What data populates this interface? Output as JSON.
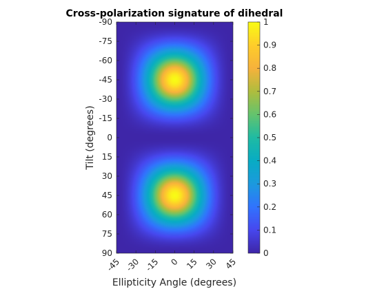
{
  "chart_data": {
    "type": "heatmap",
    "title": "Cross-polarization signature of dihedral",
    "xlabel": "Ellipticity Angle (degrees)",
    "ylabel": "Tilt (degrees)",
    "x_range": [
      -45,
      45
    ],
    "y_range": [
      -90,
      90
    ],
    "y_direction": "reversed",
    "x_ticks": [
      "-45",
      "-30",
      "-15",
      "0",
      "15",
      "30",
      "45"
    ],
    "x_tick_values": [
      -45,
      -30,
      -15,
      0,
      15,
      30,
      45
    ],
    "y_ticks": [
      "-90",
      "-75",
      "-60",
      "-45",
      "-30",
      "-15",
      "0",
      "15",
      "30",
      "45",
      "60",
      "75",
      "90"
    ],
    "y_tick_values": [
      -90,
      -75,
      -60,
      -45,
      -30,
      -15,
      0,
      15,
      30,
      45,
      60,
      75,
      90
    ],
    "colorbar": {
      "range": [
        0,
        1
      ],
      "ticks": [
        "0",
        "0.1",
        "0.2",
        "0.3",
        "0.4",
        "0.5",
        "0.6",
        "0.7",
        "0.8",
        "0.9",
        "1"
      ],
      "tick_values": [
        0,
        0.1,
        0.2,
        0.3,
        0.4,
        0.5,
        0.6,
        0.7,
        0.8,
        0.9,
        1
      ],
      "colormap": "parula"
    },
    "peaks": [
      {
        "ellipticity": 0,
        "tilt": -45,
        "value": 1
      },
      {
        "ellipticity": 0,
        "tilt": 45,
        "value": 1
      }
    ],
    "minima": [
      {
        "tilt": -90,
        "value": 0
      },
      {
        "tilt": 0,
        "value": 0
      },
      {
        "tilt": 90,
        "value": 0
      }
    ],
    "grid": false
  }
}
